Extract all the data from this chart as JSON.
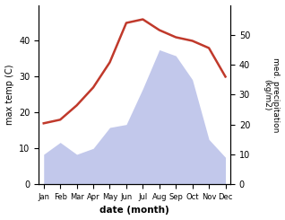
{
  "months": [
    "Jan",
    "Feb",
    "Mar",
    "Apr",
    "May",
    "Jun",
    "Jul",
    "Aug",
    "Sep",
    "Oct",
    "Nov",
    "Dec"
  ],
  "temperature": [
    17,
    18,
    22,
    27,
    34,
    45,
    46,
    43,
    41,
    40,
    38,
    30
  ],
  "precipitation": [
    10,
    14,
    10,
    12,
    19,
    20,
    32,
    45,
    43,
    35,
    15,
    9
  ],
  "temp_color": "#c0392b",
  "precip_fill_color": "#b8bfe8",
  "ylabel_left": "max temp (C)",
  "ylabel_right": "med. precipitation\n(kg/m2)",
  "xlabel": "date (month)",
  "ylim_left": [
    0,
    50
  ],
  "ylim_right": [
    0,
    60
  ],
  "yticks_left": [
    0,
    10,
    20,
    30,
    40
  ],
  "yticks_right": [
    0,
    10,
    20,
    30,
    40,
    50
  ]
}
